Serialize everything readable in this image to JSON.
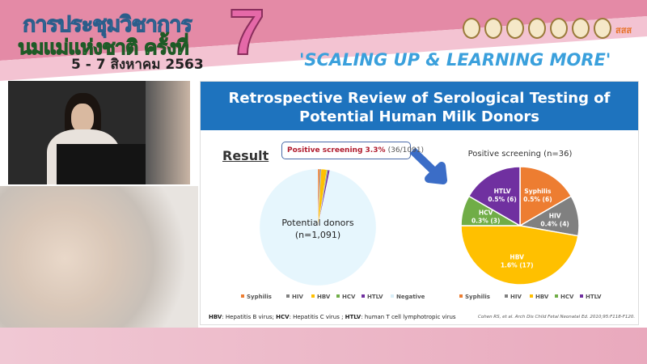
{
  "banner": {
    "title_line1": "การประชุมวิชาการ",
    "title_line2": "นมแม่แห่งชาติ ครั้งที่",
    "number": "7",
    "date": "5 - 7 สิงหาคม 2563",
    "tagline": "'SCALING UP & LEARNING MORE'",
    "logo_text": "สสส"
  },
  "slide": {
    "title_line1": "Retrospective Review of Serological Testing of",
    "title_line2": "Potential Human Milk Donors",
    "result_label": "Result",
    "positive_label": "Positive screening 3.3%",
    "positive_count": "(36/1091)",
    "footnote_parts": [
      "HBV",
      ": Hepatitis B virus; ",
      "HCV",
      ": Hepatitis C virus ; ",
      "HTLV",
      ": human T cell lymphotropic virus"
    ],
    "citation": "Cohen RS, et al. Arch Dis Child Fetal Neonatal Ed. 2010;95:F118-F120."
  },
  "colors": {
    "Syphilis": "#ed7d31",
    "HIV": "#808080",
    "HBV": "#ffc000",
    "HCV": "#70ad47",
    "HTLV": "#7030a0",
    "Negative": "#e6f6fd",
    "slide_header": "#1e73be"
  },
  "chart_data": [
    {
      "type": "pie",
      "title": "",
      "center_label": [
        "Potential donors",
        "(n=1,091)"
      ],
      "categories": [
        "Syphilis",
        "HIV",
        "HBV",
        "HCV",
        "HTLV",
        "Negative"
      ],
      "values": [
        6,
        4,
        17,
        3,
        6,
        1055
      ],
      "legend": [
        "Syphilis",
        "HIV",
        "HBV",
        "HCV",
        "HTLV",
        "Negative"
      ],
      "legend_position": "bottom"
    },
    {
      "type": "pie",
      "title": "Positive screening (n=36)",
      "categories": [
        "Syphilis",
        "HIV",
        "HBV",
        "HCV",
        "HTLV"
      ],
      "values": [
        6,
        4,
        17,
        3,
        6
      ],
      "labels": [
        [
          "Syphilis",
          "0.5% (6)"
        ],
        [
          "HIV",
          "0.4% (4)"
        ],
        [
          "HBV",
          "1.6% (17)"
        ],
        [
          "HCV",
          "0.3% (3)"
        ],
        [
          "HTLV",
          "0.5% (6)"
        ]
      ],
      "legend": [
        "Syphilis",
        "HIV",
        "HBV",
        "HCV",
        "HTLV"
      ],
      "legend_position": "bottom"
    }
  ]
}
